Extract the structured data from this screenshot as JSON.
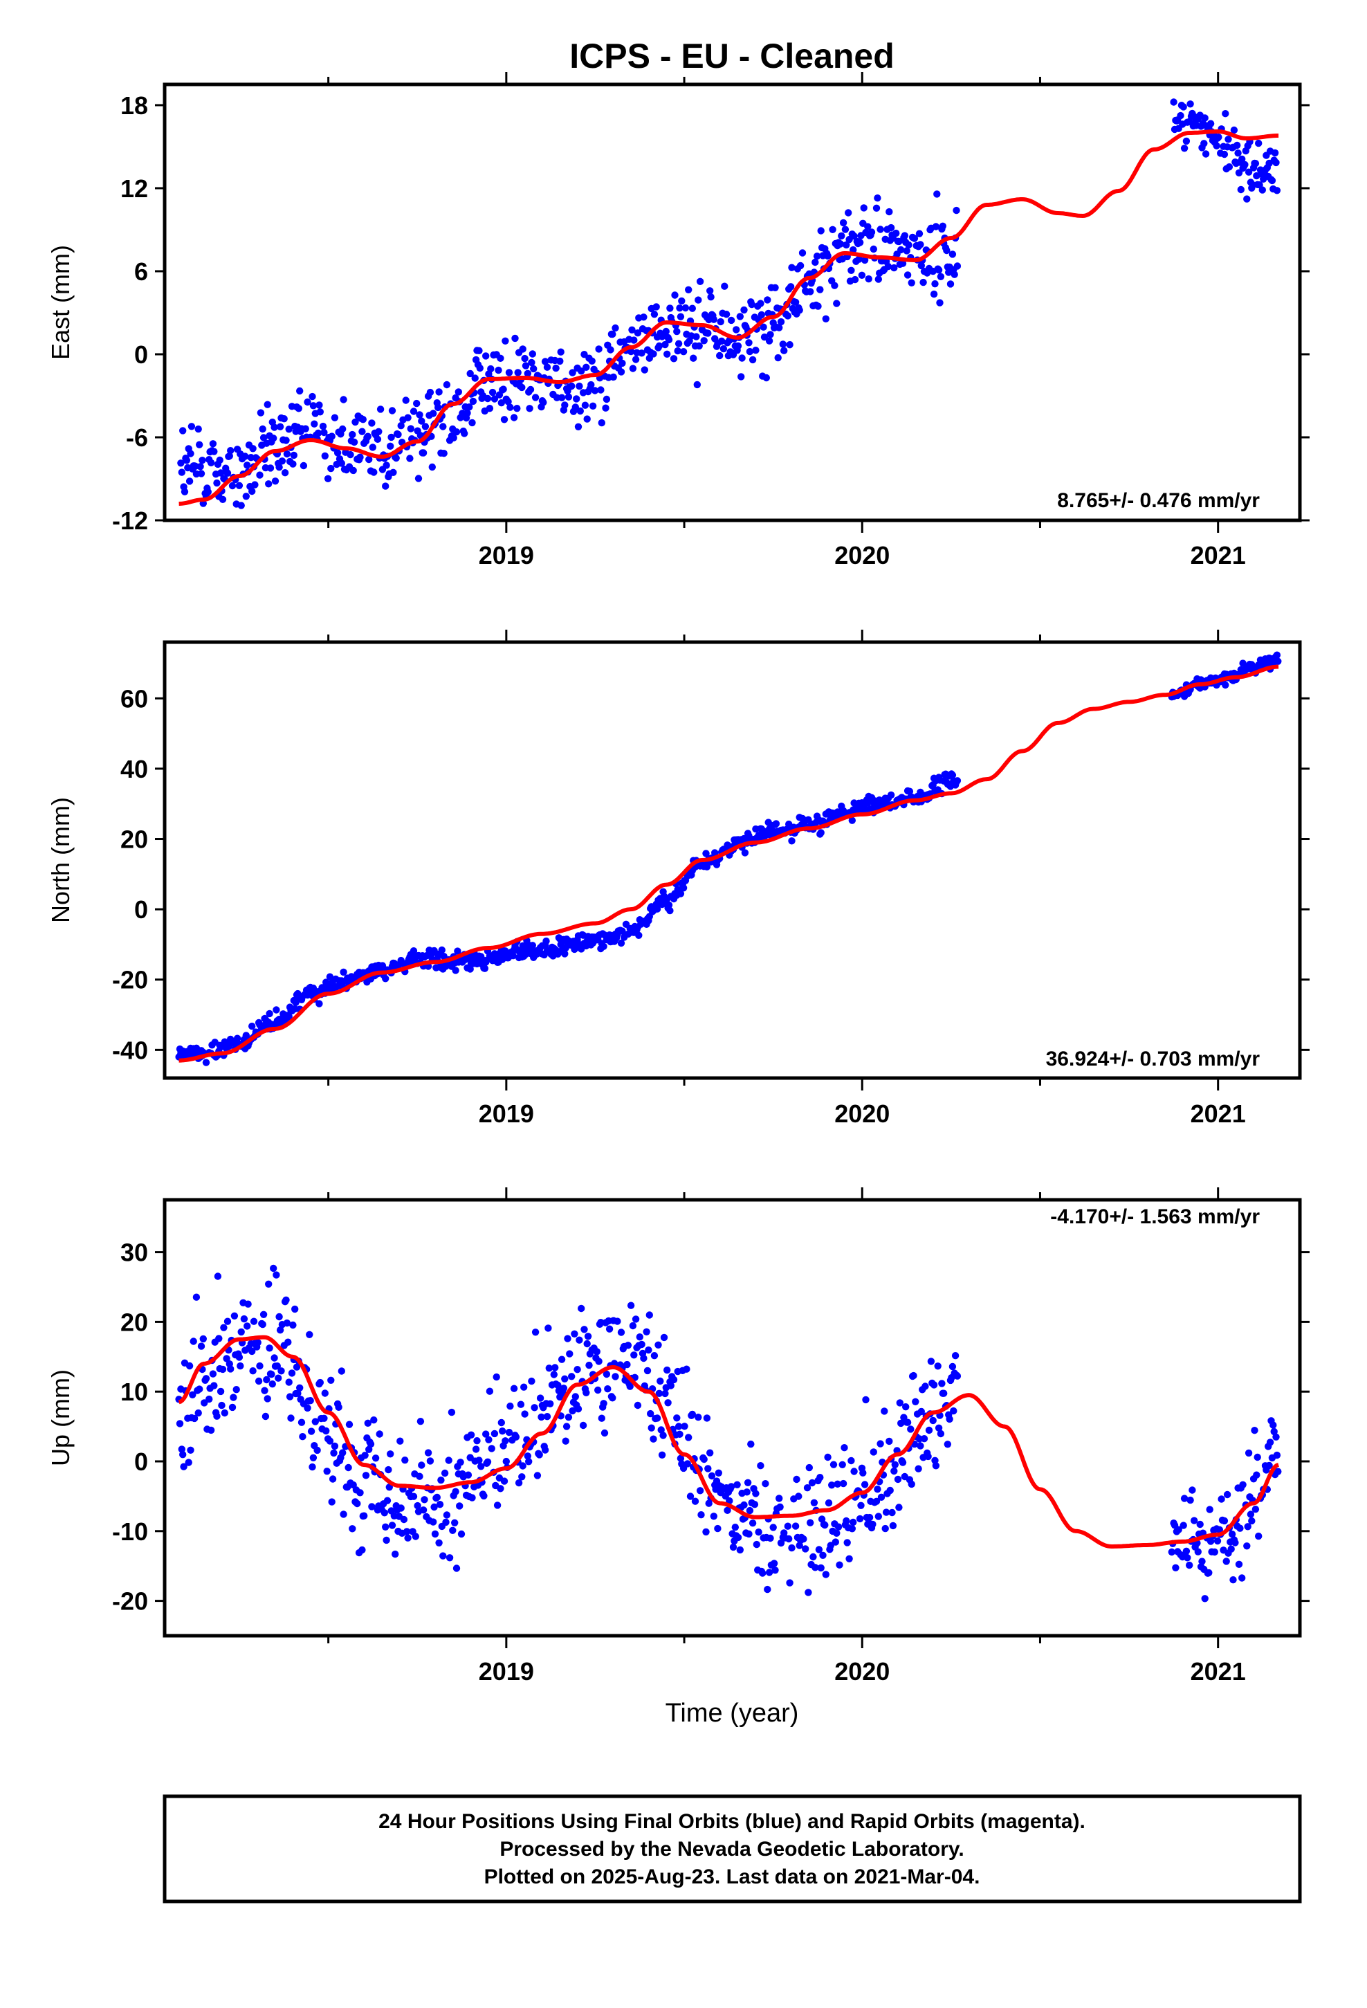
{
  "title": "ICPS  - EU - Cleaned",
  "xlabel": "Time (year)",
  "caption": {
    "line1": "24 Hour Positions Using Final Orbits (blue) and Rapid Orbits (magenta).",
    "line2": "Processed by the Nevada Geodetic Laboratory.",
    "line3": "Plotted on 2025-Aug-23. Last data on 2021-Mar-04."
  },
  "colors": {
    "data": "#0000ff",
    "model": "#ff0000"
  },
  "chart_data": [
    {
      "type": "scatter",
      "ylabel": "East (mm)",
      "rate_label": "8.765+/- 0.476 mm/yr",
      "xlim": [
        2018.04,
        2021.23
      ],
      "ylim": [
        -12,
        19.5
      ],
      "yticks": [
        -12,
        -6,
        0,
        6,
        12,
        18
      ],
      "xticks": [
        2019,
        2020,
        2021
      ],
      "data_segments": [
        {
          "x": [
            2018.08,
            2018.15,
            2018.25,
            2018.35,
            2018.45,
            2018.55,
            2018.65,
            2018.75,
            2018.85,
            2018.95,
            2019.05,
            2019.15,
            2019.25,
            2019.35,
            2019.45,
            2019.55,
            2019.65,
            2019.75,
            2019.85,
            2019.95,
            2020.05,
            2020.15,
            2020.27
          ],
          "y": [
            -8.5,
            -8.3,
            -8.8,
            -7.0,
            -5.0,
            -6.0,
            -6.8,
            -6.0,
            -4.0,
            -2.2,
            -1.8,
            -2.4,
            -1.6,
            0.3,
            2.0,
            2.2,
            1.0,
            2.0,
            5.0,
            7.8,
            7.6,
            7.2,
            7.5
          ],
          "scatter": 1.5
        },
        {
          "x": [
            2020.87,
            2020.92,
            2020.97,
            2021.02,
            2021.07,
            2021.12,
            2021.17
          ],
          "y": [
            16.8,
            17.0,
            16.0,
            15.0,
            14.0,
            13.2,
            12.8
          ],
          "scatter": 1.0
        }
      ],
      "model": {
        "x": [
          2018.08,
          2018.15,
          2018.25,
          2018.35,
          2018.45,
          2018.55,
          2018.65,
          2018.75,
          2018.85,
          2018.95,
          2019.05,
          2019.15,
          2019.25,
          2019.35,
          2019.45,
          2019.55,
          2019.65,
          2019.75,
          2019.85,
          2019.95,
          2020.05,
          2020.15,
          2020.25,
          2020.35,
          2020.45,
          2020.55,
          2020.62,
          2020.72,
          2020.82,
          2020.92,
          2021.0,
          2021.08,
          2021.17
        ],
        "y": [
          -10.8,
          -10.5,
          -8.8,
          -7.0,
          -6.2,
          -6.8,
          -7.4,
          -6.3,
          -3.6,
          -1.8,
          -1.7,
          -2.0,
          -1.5,
          0.5,
          2.3,
          2.1,
          1.2,
          2.7,
          5.5,
          7.3,
          7.0,
          6.8,
          8.4,
          10.8,
          11.2,
          10.2,
          10.0,
          11.8,
          14.8,
          16.0,
          16.1,
          15.6,
          15.8
        ]
      }
    },
    {
      "type": "scatter",
      "ylabel": "North (mm)",
      "rate_label": "36.924+/- 0.703 mm/yr",
      "xlim": [
        2018.04,
        2021.23
      ],
      "ylim": [
        -48,
        76
      ],
      "yticks": [
        -40,
        -20,
        0,
        20,
        40,
        60
      ],
      "xticks": [
        2019,
        2020,
        2021
      ],
      "data_segments": [
        {
          "x": [
            2018.08,
            2018.15,
            2018.25,
            2018.35,
            2018.45,
            2018.55,
            2018.65,
            2018.75,
            2018.85,
            2018.95,
            2019.05,
            2019.15,
            2019.25,
            2019.35,
            2019.45,
            2019.55,
            2019.65,
            2019.75,
            2019.85,
            2019.95,
            2020.05,
            2020.15,
            2020.27
          ],
          "y": [
            -41.0,
            -41.0,
            -38.0,
            -32.0,
            -24.0,
            -20.0,
            -17.0,
            -14.0,
            -15.0,
            -14.0,
            -12.0,
            -11.0,
            -9.0,
            -6.0,
            2.0,
            13.0,
            19.0,
            22.0,
            24.0,
            27.0,
            30.0,
            32.0,
            37.0
          ],
          "scatter": 1.3
        },
        {
          "x": [
            2020.87,
            2020.95,
            2021.03,
            2021.1,
            2021.17
          ],
          "y": [
            61.0,
            64.0,
            66.0,
            69.0,
            71.0
          ],
          "scatter": 0.9
        }
      ],
      "model": {
        "x": [
          2018.08,
          2018.2,
          2018.35,
          2018.5,
          2018.65,
          2018.8,
          2018.95,
          2019.1,
          2019.25,
          2019.35,
          2019.45,
          2019.55,
          2019.7,
          2019.85,
          2020.0,
          2020.15,
          2020.25,
          2020.35,
          2020.45,
          2020.55,
          2020.65,
          2020.75,
          2020.85,
          2020.95,
          2021.05,
          2021.17
        ],
        "y": [
          -43,
          -41,
          -34,
          -24,
          -18,
          -15,
          -11,
          -7,
          -4,
          0,
          7,
          14,
          19,
          23,
          27,
          31,
          33,
          37,
          45,
          53,
          57,
          59,
          61,
          64,
          66,
          69
        ]
      }
    },
    {
      "type": "scatter",
      "ylabel": "Up (mm)",
      "rate_label": "-4.170+/- 1.563 mm/yr",
      "xlim": [
        2018.04,
        2021.23
      ],
      "ylim": [
        -25,
        37.5
      ],
      "yticks": [
        -20,
        -10,
        0,
        10,
        20,
        30
      ],
      "xticks": [
        2019,
        2020,
        2021
      ],
      "data_segments": [
        {
          "x": [
            2018.08,
            2018.15,
            2018.25,
            2018.35,
            2018.45,
            2018.55,
            2018.65,
            2018.75,
            2018.85,
            2018.95,
            2019.05,
            2019.15,
            2019.25,
            2019.35,
            2019.45,
            2019.55,
            2019.65,
            2019.75,
            2019.85,
            2019.95,
            2020.05,
            2020.15,
            2020.27
          ],
          "y": [
            7.0,
            13.0,
            17.0,
            16.0,
            9.0,
            0.0,
            -3.0,
            -5.0,
            -4.0,
            -1.0,
            2.0,
            9.0,
            14.0,
            15.0,
            11.0,
            -1.0,
            -6.0,
            -10.0,
            -9.0,
            -6.0,
            -3.0,
            4.0,
            10.0
          ],
          "scatter": 4.5
        },
        {
          "x": [
            2020.87,
            2020.95,
            2021.03,
            2021.1,
            2021.17
          ],
          "y": [
            -11.0,
            -12.0,
            -10.0,
            -5.0,
            1.0
          ],
          "scatter": 3.5
        }
      ],
      "model": {
        "x": [
          2018.08,
          2018.15,
          2018.25,
          2018.32,
          2018.4,
          2018.5,
          2018.6,
          2018.7,
          2018.8,
          2018.9,
          2019.0,
          2019.1,
          2019.2,
          2019.3,
          2019.4,
          2019.5,
          2019.6,
          2019.7,
          2019.8,
          2019.9,
          2020.0,
          2020.1,
          2020.2,
          2020.3,
          2020.4,
          2020.5,
          2020.6,
          2020.7,
          2020.8,
          2020.9,
          2021.0,
          2021.1,
          2021.17
        ],
        "y": [
          8.5,
          14.0,
          17.5,
          17.8,
          15.0,
          7.0,
          -0.5,
          -3.5,
          -3.8,
          -3.0,
          -1.0,
          4.0,
          11.0,
          13.5,
          10.0,
          1.0,
          -6.0,
          -8.0,
          -7.8,
          -7.0,
          -4.5,
          1.0,
          7.0,
          9.5,
          5.0,
          -4.0,
          -10.0,
          -12.2,
          -12.0,
          -11.5,
          -10.5,
          -6.0,
          -0.5
        ]
      }
    }
  ]
}
